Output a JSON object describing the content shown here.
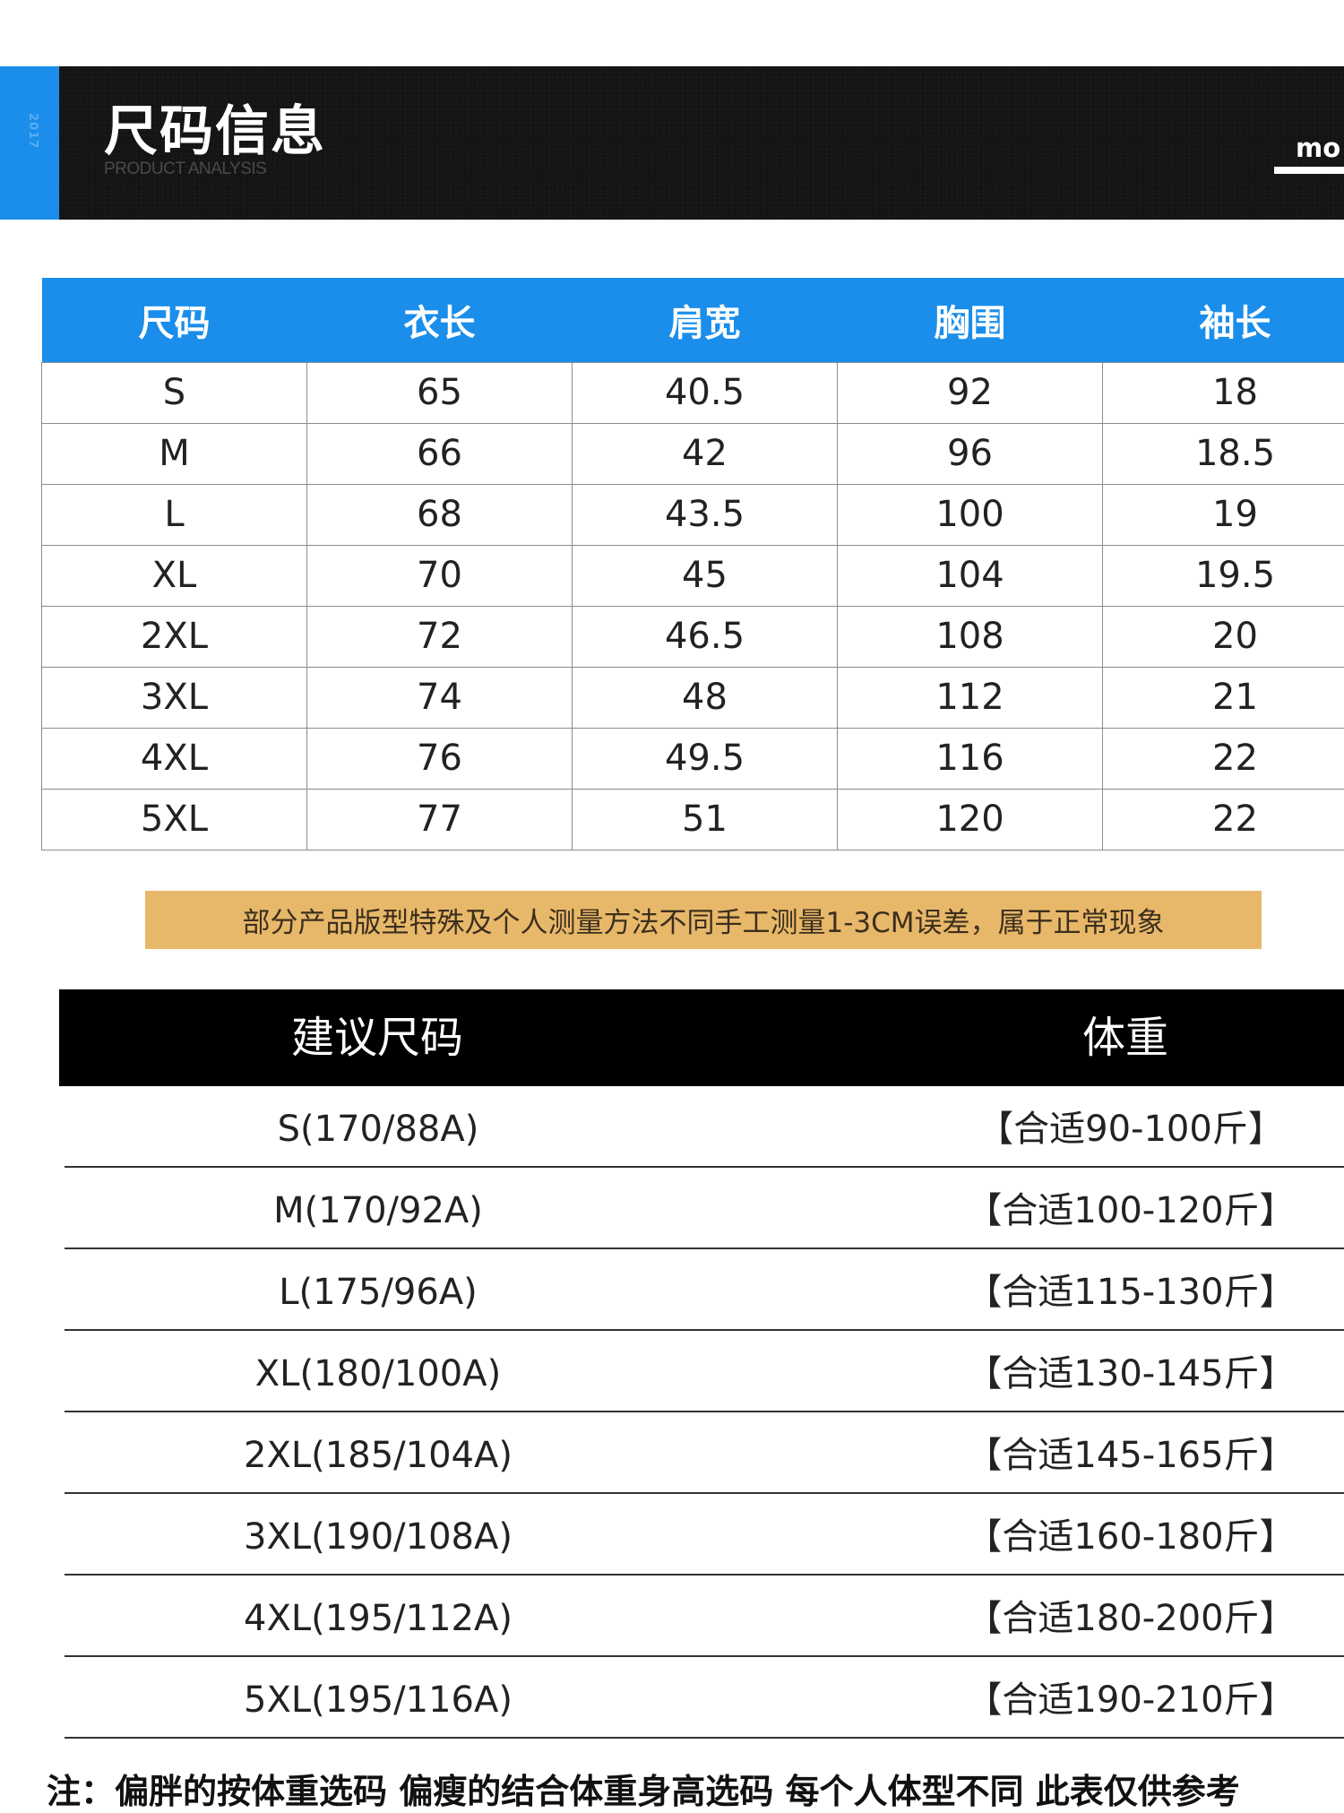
{
  "banner": {
    "accent_text": "2017",
    "title": "尺码信息",
    "subtitle": "PRODUCT ANALYSIS",
    "more_label": "mo"
  },
  "size_table": {
    "headers": [
      "尺码",
      "衣长",
      "肩宽",
      "胸围",
      "袖长"
    ],
    "rows": [
      [
        "S",
        "65",
        "40.5",
        "92",
        "18"
      ],
      [
        "M",
        "66",
        "42",
        "96",
        "18.5"
      ],
      [
        "L",
        "68",
        "43.5",
        "100",
        "19"
      ],
      [
        "XL",
        "70",
        "45",
        "104",
        "19.5"
      ],
      [
        "2XL",
        "72",
        "46.5",
        "108",
        "20"
      ],
      [
        "3XL",
        "74",
        "48",
        "112",
        "21"
      ],
      [
        "4XL",
        "76",
        "49.5",
        "116",
        "22"
      ],
      [
        "5XL",
        "77",
        "51",
        "120",
        "22"
      ]
    ]
  },
  "note": "部分产品版型特殊及个人测量方法不同手工测量1-3CM误差，属于正常现象",
  "recommend_table": {
    "headers": [
      "建议尺码",
      "体重"
    ],
    "rows": [
      [
        "S(170/88A)",
        "【合适90-100斤】"
      ],
      [
        "M(170/92A)",
        "【合适100-120斤】"
      ],
      [
        "L(175/96A)",
        "【合适115-130斤】"
      ],
      [
        "XL(180/100A)",
        "【合适130-145斤】"
      ],
      [
        "2XL(185/104A)",
        "【合适145-165斤】"
      ],
      [
        "3XL(190/108A)",
        "【合适160-180斤】"
      ],
      [
        "4XL(195/112A)",
        "【合适180-200斤】"
      ],
      [
        "5XL(195/116A)",
        "【合适190-210斤】"
      ]
    ]
  },
  "footer_note": "注：偏胖的按体重选码 偏瘦的结合体重身高选码 每个人体型不同 此表仅供参考"
}
